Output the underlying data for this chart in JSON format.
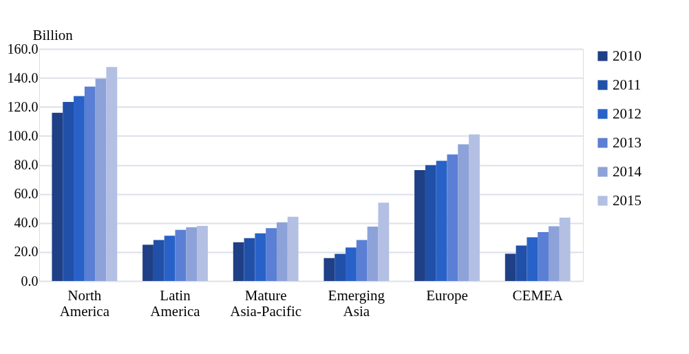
{
  "chart_data": {
    "type": "bar",
    "ylabel": "Billion",
    "categories": [
      "North America",
      "Latin America",
      "Mature Asia-Pacific",
      "Emerging Asia",
      "Europe",
      "CEMEA"
    ],
    "series": [
      {
        "name": "2010",
        "color": "#1f3f86",
        "values": [
          116,
          25,
          26.7,
          15.8,
          76.4,
          18.8
        ]
      },
      {
        "name": "2011",
        "color": "#2150a8",
        "values": [
          123.5,
          28.3,
          29.6,
          18.7,
          79.9,
          24.5
        ]
      },
      {
        "name": "2012",
        "color": "#2862c8",
        "values": [
          127.5,
          31.2,
          32.9,
          23.1,
          82.8,
          30.2
        ]
      },
      {
        "name": "2013",
        "color": "#5a7fd4",
        "values": [
          134,
          35.3,
          36.4,
          28.3,
          87.2,
          33.7
        ]
      },
      {
        "name": "2014",
        "color": "#8da2d8",
        "values": [
          139.5,
          37,
          40.5,
          37.5,
          94.2,
          37.7
        ]
      },
      {
        "name": "2015",
        "color": "#b3bfe3",
        "values": [
          147.5,
          38,
          44.3,
          54,
          101,
          43.7
        ]
      }
    ],
    "ylim": [
      0,
      160
    ],
    "yticks": [
      {
        "value": 0,
        "label": "0.0"
      },
      {
        "value": 20,
        "label": "20.0"
      },
      {
        "value": 40,
        "label": "40.0"
      },
      {
        "value": 60,
        "label": "60.0"
      },
      {
        "value": 80,
        "label": "80.0"
      },
      {
        "value": 100,
        "label": "100.0"
      },
      {
        "value": 120,
        "label": "120.0"
      },
      {
        "value": 140,
        "label": "140.0"
      },
      {
        "value": 160,
        "label": "160.0"
      }
    ],
    "grid": "y",
    "legend": "right"
  }
}
